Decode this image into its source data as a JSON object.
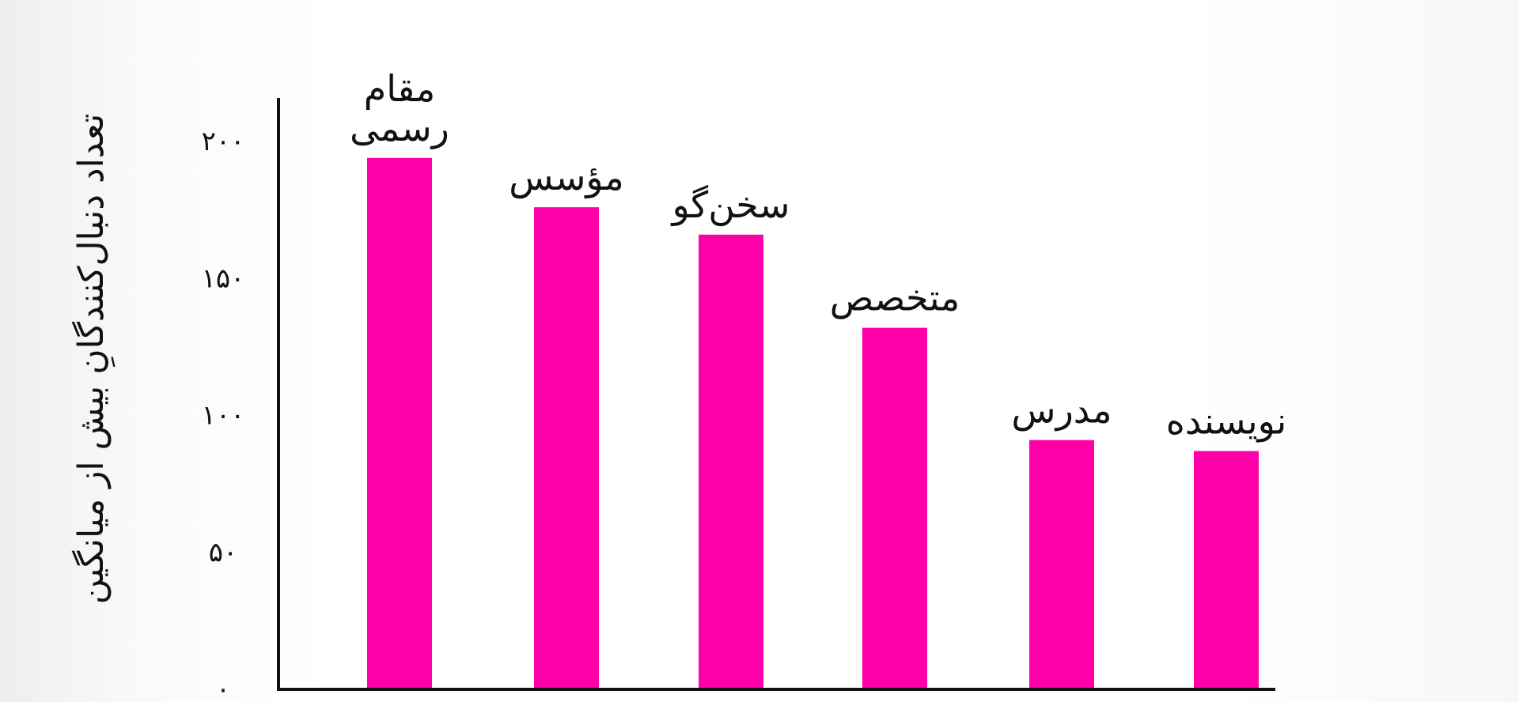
{
  "chart_data": {
    "type": "bar",
    "title": "",
    "xlabel": "",
    "ylabel": "تعداد دنبال‌کنندگانِ بیش از میانگین",
    "categories": [
      "مقام رسمی",
      "مؤسس",
      "سخن‌گو",
      "متخصص",
      "مدرس",
      "نویسنده"
    ],
    "category_lines": [
      [
        "مقام",
        "رسمی"
      ],
      [
        "مؤسس"
      ],
      [
        "سخن‌گو"
      ],
      [
        "متخصص"
      ],
      [
        "مدرس"
      ],
      [
        "نویسنده"
      ]
    ],
    "values": [
      194,
      176,
      166,
      132,
      91,
      87
    ],
    "yticks": [
      0,
      50,
      100,
      150,
      200
    ],
    "ytick_labels": [
      "۰",
      "۵۰",
      "۱۰۰",
      "۱۵۰",
      "۲۰۰"
    ],
    "ylim": [
      0,
      200
    ],
    "grid": false,
    "bar_color": "#ff00a8",
    "axis_color": "#111111"
  }
}
